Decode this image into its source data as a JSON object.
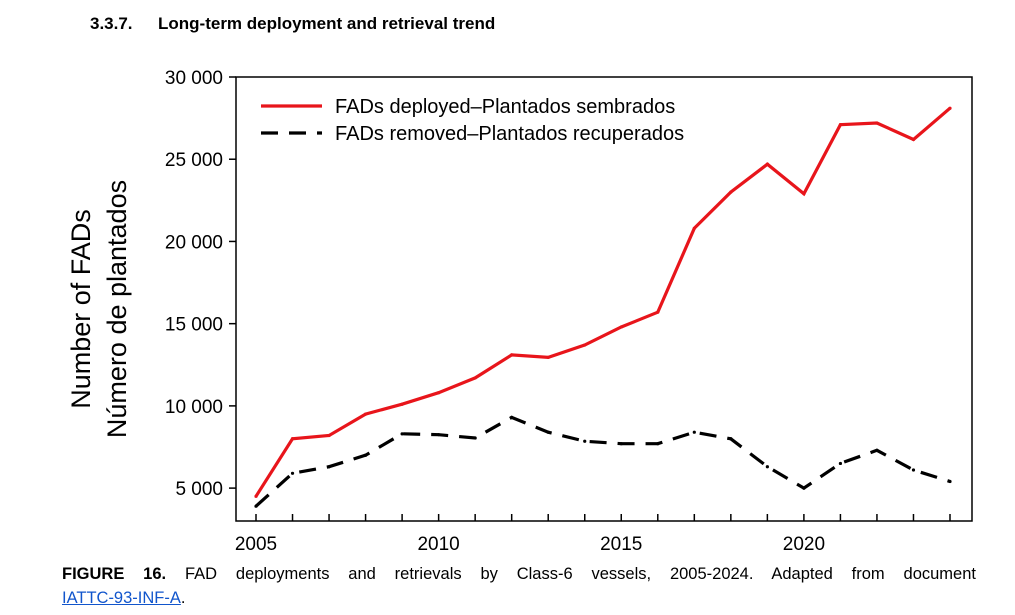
{
  "heading": {
    "number": "3.3.7.",
    "title": "Long-term deployment and retrieval trend"
  },
  "caption": {
    "label": "FIGURE 16.",
    "text": "FAD deployments and retrievals by Class-6 vessels, 2005-2024. Adapted from document",
    "link_text": "IATTC-93-INF-A",
    "end": "."
  },
  "colors": {
    "deployed": "#e8151b",
    "removed": "#000000",
    "link": "#1155cc"
  },
  "chart_data": {
    "type": "line",
    "ylabel": [
      "Number of FADs",
      "Número de plantados"
    ],
    "xlabel": "",
    "xlim": [
      2005,
      2024
    ],
    "ylim": [
      3000,
      30000
    ],
    "x_tick_labels": [
      "2005",
      "2010",
      "2015",
      "2020"
    ],
    "y_tick_labels": [
      "5 000",
      "10 000",
      "15 000",
      "20 000",
      "25 000",
      "30 000"
    ],
    "legend_position": "top-left",
    "grid": false,
    "x": [
      2005,
      2006,
      2007,
      2008,
      2009,
      2010,
      2011,
      2012,
      2013,
      2014,
      2015,
      2016,
      2017,
      2018,
      2019,
      2020,
      2021,
      2022,
      2023,
      2024
    ],
    "series": [
      {
        "name": "FADs deployed–Plantados sembrados",
        "style": "solid",
        "color": "#e8151b",
        "values": [
          4500,
          8000,
          8200,
          9500,
          10100,
          10800,
          11700,
          13100,
          12950,
          13700,
          14800,
          15700,
          20800,
          23000,
          24700,
          22900,
          27100,
          27200,
          26200,
          28100
        ]
      },
      {
        "name": "FADs removed–Plantados recuperados",
        "style": "dashed",
        "color": "#000000",
        "values": [
          3900,
          5900,
          6300,
          7000,
          8300,
          8250,
          8050,
          9300,
          8400,
          7850,
          7700,
          7700,
          8400,
          8000,
          6300,
          5000,
          6500,
          7300,
          6100,
          5400
        ]
      }
    ]
  }
}
